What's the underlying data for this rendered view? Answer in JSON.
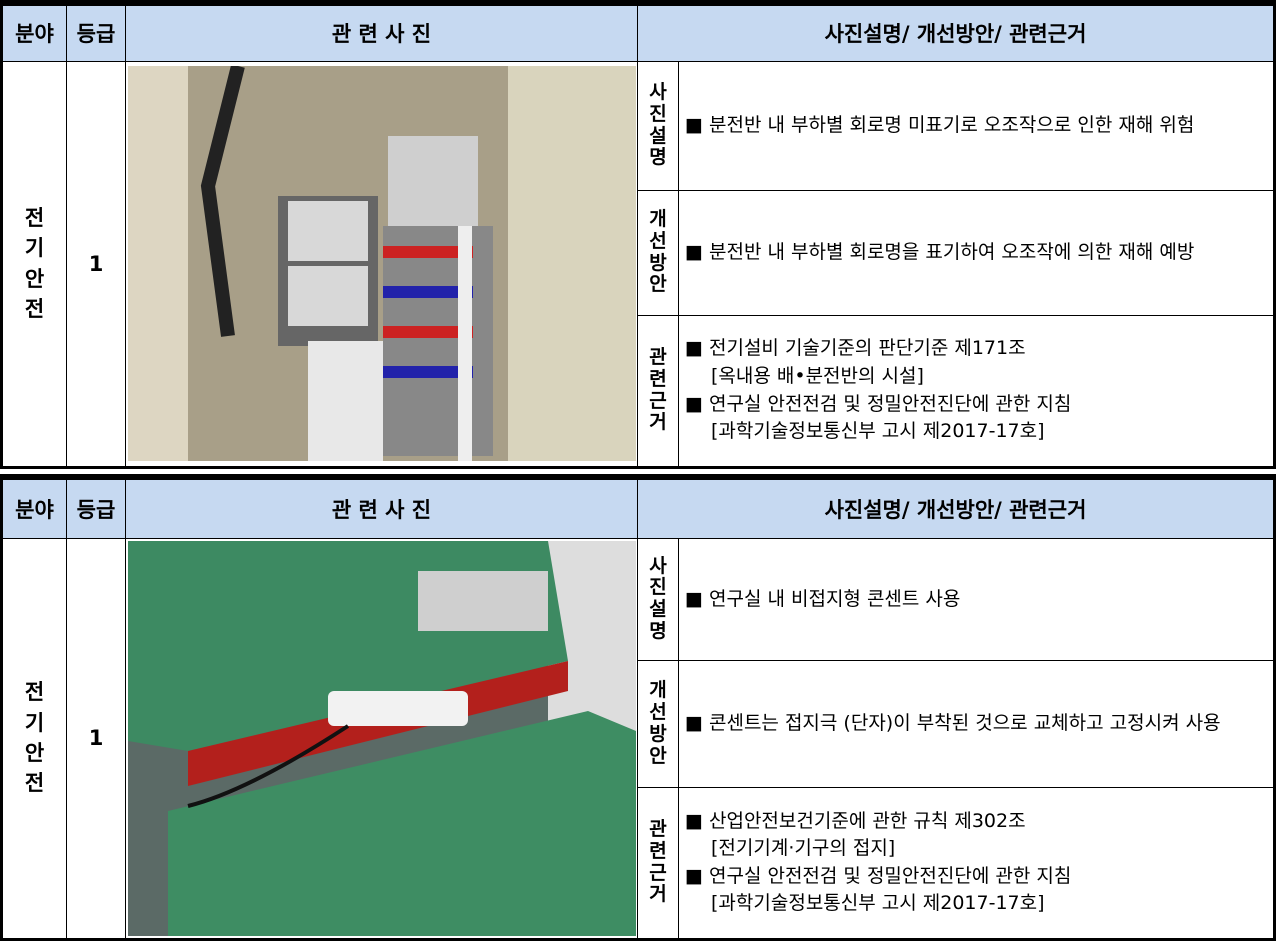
{
  "tables": [
    {
      "header": [
        "분야",
        "등급",
        "관 련 사 진",
        "사진설명/ 개선방안/ 관련근거"
      ],
      "field": "전기안전",
      "grade": "1",
      "rows": [
        {
          "label": "사진설명",
          "lines": [
            "■ 분전반 내 부하별 회로명 미표기로 오조작으로 인한 재해 위험"
          ]
        },
        {
          "label": "개선방안",
          "lines": [
            "■ 분전반 내 부하별 회로명을 표기하여 오조작에 의한 재해 예방"
          ]
        },
        {
          "label": "관련근거",
          "lines": [
            "■ 전기설비 기술기준의 판단기준 제171조",
            "[옥내용 배•분전반의 시설]",
            "■ 연구실 안전전검 및 정밀안전진단에 관한 지침",
            "[과학기술정보통신부 고시 제2017-17호]"
          ]
        }
      ]
    },
    {
      "header": [
        "분야",
        "등급",
        "관 련 사 진",
        "사진설명/ 개선방안/ 관련근거"
      ],
      "field": "전기안전",
      "grade": "1",
      "rows": [
        {
          "label": "사진설명",
          "lines": [
            "■ 연구실 내 비접지형 콘센트 사용"
          ]
        },
        {
          "label": "개선방안",
          "lines": [
            "■ 콘센트는 접지극 (단자)이 부착된 것으로 교체하고 고정시켜 사용"
          ]
        },
        {
          "label": "관련근거",
          "lines": [
            "■ 산업안전보건기준에 관한 규칙 제302조",
            "[전기기계·기구의 접지]",
            "■ 연구실 안전전검 및 정밀안전진단에 관한 지침",
            "[과학기술정보통신부 고시 제2017-17호]"
          ]
        }
      ]
    }
  ]
}
